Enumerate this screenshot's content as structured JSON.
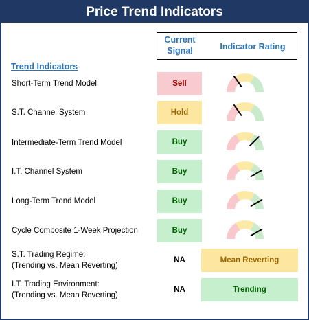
{
  "title": "Price Trend Indicators",
  "header": {
    "signal_label_line1": "Current",
    "signal_label_line2": "Signal",
    "rating_label": "Indicator Rating"
  },
  "section_label": "Trend Indicators",
  "colors": {
    "title_bg": "#1f3864",
    "header_text": "#2e75b6",
    "sell_bg": "#f8cbd0",
    "hold_bg": "#fde7a0",
    "buy_bg": "#c6efce"
  },
  "indicators": [
    {
      "label": "Short-Term Trend Model",
      "signal": "Sell",
      "type": "sell",
      "needle_angle": 125
    },
    {
      "label": "S.T. Channel System",
      "signal": "Hold",
      "type": "hold",
      "needle_angle": 125
    },
    {
      "label": "Intermediate-Term Trend Model",
      "signal": "Buy",
      "type": "buy",
      "needle_angle": 45
    },
    {
      "label": "I.T. Channel System",
      "signal": "Buy",
      "type": "buy",
      "needle_angle": 30
    },
    {
      "label": "Long-Term Trend Model",
      "signal": "Buy",
      "type": "buy",
      "needle_angle": 30
    },
    {
      "label": "Cycle Composite 1-Week Projection",
      "signal": "Buy",
      "type": "buy",
      "needle_angle": 30
    }
  ],
  "regimes": [
    {
      "label_line1": "S.T. Trading Regime:",
      "label_line2": "(Trending vs. Mean Reverting)",
      "signal": "NA",
      "rating": "Mean Reverting",
      "type": "hold"
    },
    {
      "label_line1": "I.T. Trading Environment:",
      "label_line2": "(Trending vs. Mean Reverting)",
      "signal": "NA",
      "rating": "Trending",
      "type": "buy"
    }
  ]
}
